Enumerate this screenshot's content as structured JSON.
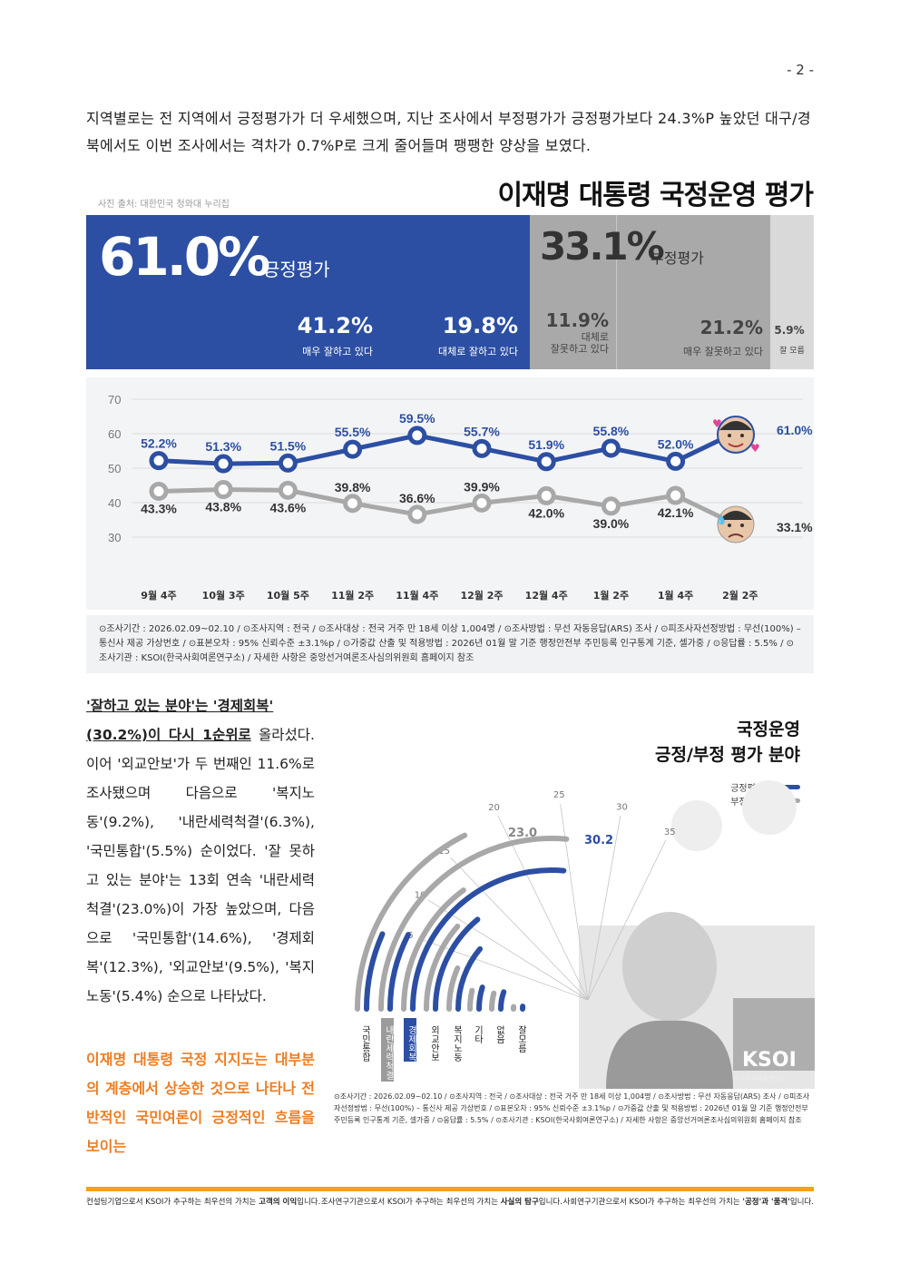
{
  "page_number": "- 2 -",
  "intro": "지역별로는 전 지역에서 긍정평가가 더 우세했으며, 지난 조사에서 부정평가가 긍정평가보다 24.3%P 높았던 대구/경북에서도 이번 조사에서는 격차가 0.7%P로 크게 줄어들며 팽팽한 양상을 보였다.",
  "photo_credit": "사진 출처: 대한민국 청와대 누리집",
  "main_title": "이재명 대통령 국정운영 평가",
  "summary": {
    "positive_value": "61.0%",
    "positive_label": "긍정평가",
    "negative_value": "33.1%",
    "negative_label": "부정평가",
    "items": [
      {
        "value": "41.2%",
        "label": "매우 잘하고 있다"
      },
      {
        "value": "19.8%",
        "label": "대체로 잘하고 있다"
      },
      {
        "value": "11.9%",
        "label": "대체로\n잘못하고 있다"
      },
      {
        "value": "21.2%",
        "label": "매우 잘못하고 있다"
      },
      {
        "value": "5.9%",
        "label": "잘 모름"
      }
    ]
  },
  "chart_data": [
    {
      "type": "line",
      "categories": [
        "9월 4주",
        "10월 3주",
        "10월 5주",
        "11월 2주",
        "11월 4주",
        "12월 2주",
        "12월 4주",
        "1월 2주",
        "1월 4주",
        "2월 2주"
      ],
      "series": [
        {
          "values": [
            52.2,
            51.3,
            51.5,
            55.5,
            59.5,
            55.7,
            51.9,
            55.8,
            52.0,
            61.0
          ],
          "labels": [
            "52.2%",
            "51.3%",
            "51.5%",
            "55.5%",
            "59.5%",
            "55.7%",
            "51.9%",
            "55.8%",
            "52.0%",
            "61.0%"
          ],
          "color": "#2c4fa3"
        },
        {
          "values": [
            43.3,
            43.8,
            43.6,
            39.8,
            36.6,
            39.9,
            42.0,
            39.0,
            42.1,
            33.1
          ],
          "labels": [
            "43.3%",
            "43.8%",
            "43.6%",
            "39.8%",
            "36.6%",
            "39.9%",
            "42.0%",
            "39.0%",
            "42.1%",
            "33.1%"
          ],
          "color": "#a8a8a8"
        }
      ],
      "yticks": [
        "70",
        "60",
        "50",
        "40",
        "30"
      ],
      "ylim": [
        30,
        70
      ],
      "grid": true
    },
    {
      "type": "radial-bar",
      "title": "국정운영 긍정/부정 평가 분야",
      "categories": [
        "국민통합",
        "내란세력척결",
        "경제회복",
        "외교안보",
        "복지노동",
        "기타",
        "없음",
        "잘 모름"
      ],
      "series": [
        {
          "name": "긍정평가",
          "values": [
            5.5,
            6.3,
            30.2,
            11.6,
            9.2,
            4.0,
            4.5,
            1.2
          ],
          "color": "#2c4fa3"
        },
        {
          "name": "부정평가",
          "values": [
            14.6,
            23.0,
            12.3,
            9.5,
            5.4,
            3.0,
            3.5,
            0.8
          ],
          "color": "#a8a8a8"
        }
      ],
      "scale_ticks": [
        "5",
        "10",
        "15",
        "20",
        "25",
        "30",
        "35"
      ],
      "value_labels": [
        "23.0",
        "30.2"
      ]
    }
  ],
  "survey_note": "⊙조사기간 : 2026.02.09~02.10 / ⊙조사지역 : 전국 / ⊙조사대상 : 전국 거주 만 18세 이상 1,004명 / ⊙조사방법 : 무선 자동응답(ARS) 조사 / ⊙피조사자선정방법 : 무선(100%) – 통신사 제공 가상번호 / ⊙표본오차 : 95% 신뢰수준 ±3.1%p / ⊙가중값 산출 및 적용방법 : 2026년 01월 말 기준 행정안전부 주민등록 인구통계 기준, 셀가중 / ⊙응답률 : 5.5% / ⊙조사기관 : KSOI(한국사회여론연구소) / 자세한 사항은 중앙선거여론조사심의위원회 홈페이지 참조",
  "left_text": {
    "bold_a": "'잘하고 있는 분야'는 '경제회복'",
    "bold_b": "(30.2%)이 다시 1순위로",
    "rest": " 올라섰다. 이어 '외교안보'가 두 번째인 11.6%로 조사됐으며 다음으로 '복지노동'(9.2%), '내란세력척결'(6.3%), '국민통합'(5.5%) 순이었다. '잘 못하고 있는 분야'는 13회 연속 '내란세력 척결'(23.0%)이 가장 높았으며, 다음으로 '국민통합'(14.6%), '경제회복'(12.3%), '외교안보'(9.5%), '복지노동'(5.4%) 순으로 나타났다.",
    "orange": "이재명 대통령 국정 지지도는 대부분의 계층에서 상승한 것으로 나타나 전반적인 국민여론이 긍정적인 흐름을 보이는"
  },
  "right_title_1": "국정운영",
  "right_title_2": "긍정/부정 평가 분야",
  "legend_pos": "긍정평가",
  "legend_neg": "부정평가",
  "ksoi_logo": "KSOI",
  "ksoi_sub": "한국사회여론연구소",
  "small_note": "⊙조사기간 : 2026.02.09~02.10 / ⊙조사지역 : 전국 / ⊙조사대상 : 전국 거주 만 18세 이상 1,004명 / ⊙조사방법 : 무선 자동응답(ARS) 조사 / ⊙피조사자선정방법 : 무선(100%) – 통신사 제공 가상번호 / ⊙표본오차 : 95% 신뢰수준 ±3.1%p / ⊙가중값 산출 및 적용방법 : 2026년 01월 말 기준 행정안전부 주민등록 인구통계 기준, 셀가중 / ⊙응답률 : 5.5% / ⊙조사기관 : KSOI(한국사회여론연구소) / 자세한 사항은 중앙선거여론조사심의위원회 홈페이지 참조",
  "footer": {
    "f1a": "컨설팅기업으로서 KSOI가 추구하는 최우선의 가치는 ",
    "f1b": "고객의 이익",
    "f1c": "입니다.",
    "f2a": "조사연구기관으로서 KSOI가 추구하는 최우선의 가치는 ",
    "f2b": "사실의 탐구",
    "f2c": "입니다.",
    "f3a": "사회연구기관으로서 KSOI가 추구하는 최우선의 가치는 ",
    "f3b": "'공정'과 '품격'",
    "f3c": "입니다."
  },
  "colors": {
    "positive": "#2c4fa3",
    "negative": "#a8a8a8",
    "accent_orange": "#ee7d22",
    "footer_bar": "#f2a21a"
  }
}
